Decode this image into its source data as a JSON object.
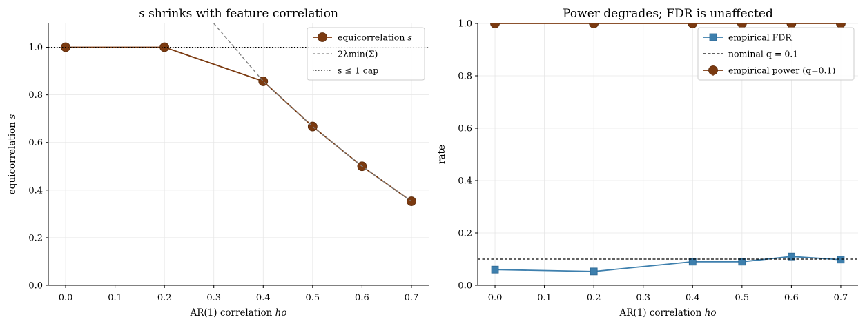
{
  "chart_data": [
    {
      "type": "line",
      "title_math": "s",
      "title_text": " shrinks with feature correlation",
      "xlabel_text": "AR(1) correlation ",
      "xlabel_math": "ho",
      "ylabel_text": "equicorrelation ",
      "ylabel_math": "s",
      "xlim": [
        -0.035,
        0.735
      ],
      "ylim": [
        0.0,
        1.1
      ],
      "xticks": [
        0.0,
        0.1,
        0.2,
        0.3,
        0.4,
        0.5,
        0.6,
        0.7
      ],
      "xtick_labels": [
        "0.0",
        "0.1",
        "0.2",
        "0.3",
        "0.4",
        "0.5",
        "0.6",
        "0.7"
      ],
      "yticks": [
        0.0,
        0.2,
        0.4,
        0.6,
        0.8,
        1.0
      ],
      "ytick_labels": [
        "0.0",
        "0.2",
        "0.4",
        "0.6",
        "0.8",
        "1.0"
      ],
      "grid": true,
      "legend_position": "top-right",
      "series": [
        {
          "name_text": "equicorrelation ",
          "name_math": "s",
          "style": "solid-with-circles",
          "color": "#7b3a10",
          "x": [
            0.0,
            0.2,
            0.4,
            0.5,
            0.6,
            0.7
          ],
          "y": [
            1.0,
            1.0,
            0.857,
            0.667,
            0.5,
            0.353
          ]
        },
        {
          "name_text": "2λmin(Σ)",
          "style": "dashed",
          "color": "#808080",
          "x": [
            0.3,
            0.4,
            0.5,
            0.6,
            0.7
          ],
          "y": [
            1.1,
            0.857,
            0.667,
            0.5,
            0.353
          ]
        },
        {
          "name_text": "s ≤ 1 cap",
          "style": "dotted-horizontal",
          "color": "#000000",
          "y": 1.0
        }
      ]
    },
    {
      "type": "line",
      "title_text": "Power degrades; FDR is unaffected",
      "xlabel_text": "AR(1) correlation ",
      "xlabel_math": "ho",
      "ylabel_text": "rate",
      "xlim": [
        -0.035,
        0.735
      ],
      "ylim": [
        0.0,
        1.0
      ],
      "xticks": [
        0.0,
        0.1,
        0.2,
        0.3,
        0.4,
        0.5,
        0.6,
        0.7
      ],
      "xtick_labels": [
        "0.0",
        "0.1",
        "0.2",
        "0.3",
        "0.4",
        "0.5",
        "0.6",
        "0.7"
      ],
      "yticks": [
        0.0,
        0.2,
        0.4,
        0.6,
        0.8,
        1.0
      ],
      "ytick_labels": [
        "0.0",
        "0.2",
        "0.4",
        "0.6",
        "0.8",
        "1.0"
      ],
      "grid": true,
      "legend_position": "top-right",
      "series": [
        {
          "name_text": "empirical FDR",
          "style": "solid-with-squares",
          "color": "#3d7fad",
          "x": [
            0.0,
            0.2,
            0.4,
            0.5,
            0.6,
            0.7
          ],
          "y": [
            0.06,
            0.053,
            0.09,
            0.09,
            0.11,
            0.098
          ]
        },
        {
          "name_text": "nominal q = 0.1",
          "style": "dashed-horizontal",
          "color": "#000000",
          "y": 0.1
        },
        {
          "name_text": "empirical power (q=0.1)",
          "style": "solid-with-circles-errorbars",
          "color": "#7b3a10",
          "x": [
            0.0,
            0.2,
            0.4,
            0.5,
            0.6,
            0.7
          ],
          "y": [
            1.0,
            1.0,
            1.0,
            1.0,
            1.0,
            1.0
          ]
        }
      ]
    }
  ]
}
